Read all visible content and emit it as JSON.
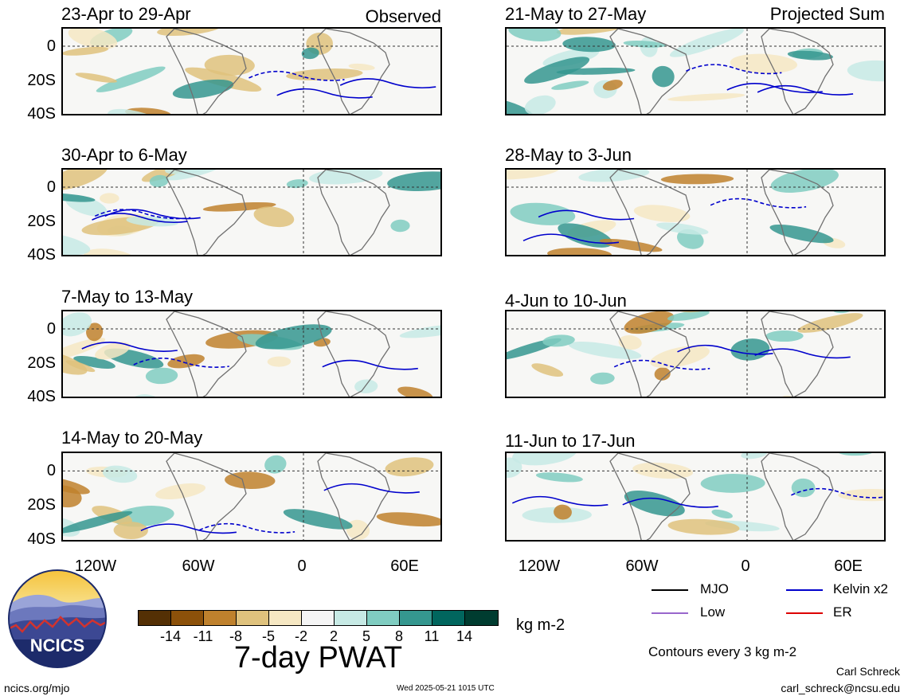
{
  "panels_left": [
    {
      "title": "23-Apr to 29-Apr",
      "tag": "Observed"
    },
    {
      "title": "30-Apr to 6-May",
      "tag": ""
    },
    {
      "title": "7-May to 13-May",
      "tag": ""
    },
    {
      "title": "14-May to 20-May",
      "tag": ""
    }
  ],
  "panels_right": [
    {
      "title": "21-May to 27-May",
      "tag": "Projected Sum"
    },
    {
      "title": "28-May to 3-Jun",
      "tag": ""
    },
    {
      "title": "4-Jun to 10-Jun",
      "tag": ""
    },
    {
      "title": "11-Jun to 17-Jun",
      "tag": ""
    }
  ],
  "y_ticks": [
    "0",
    "20S",
    "40S"
  ],
  "x_ticks": [
    "120W",
    "60W",
    "0",
    "60E"
  ],
  "colorbar": {
    "colors": [
      "#543005",
      "#8c510a",
      "#bf812d",
      "#dfc27d",
      "#f6e8c3",
      "#f5f5f5",
      "#c7eae5",
      "#80cdc1",
      "#35978f",
      "#01665e",
      "#003c30"
    ],
    "labels": [
      "-14",
      "-11",
      "-8",
      "-5",
      "-2",
      "2",
      "5",
      "8",
      "11",
      "14"
    ],
    "units": "kg m-2",
    "title": "7-day PWAT"
  },
  "legend": {
    "mjo": {
      "label": "MJO",
      "color": "#000000"
    },
    "kelvin": {
      "label": "Kelvin x2",
      "color": "#0000cc"
    },
    "low": {
      "label": "Low",
      "color": "#9966cc"
    },
    "er": {
      "label": "ER",
      "color": "#dd0000"
    }
  },
  "contour_note": "Contours every 3 kg m-2",
  "logo_text": "NCICS",
  "footer": {
    "left": "ncics.org/mjo",
    "center": "Wed 2025-05-21 1015 UTC",
    "author": "Carl Schreck",
    "email": "carl_schreck@ncsu.edu"
  }
}
